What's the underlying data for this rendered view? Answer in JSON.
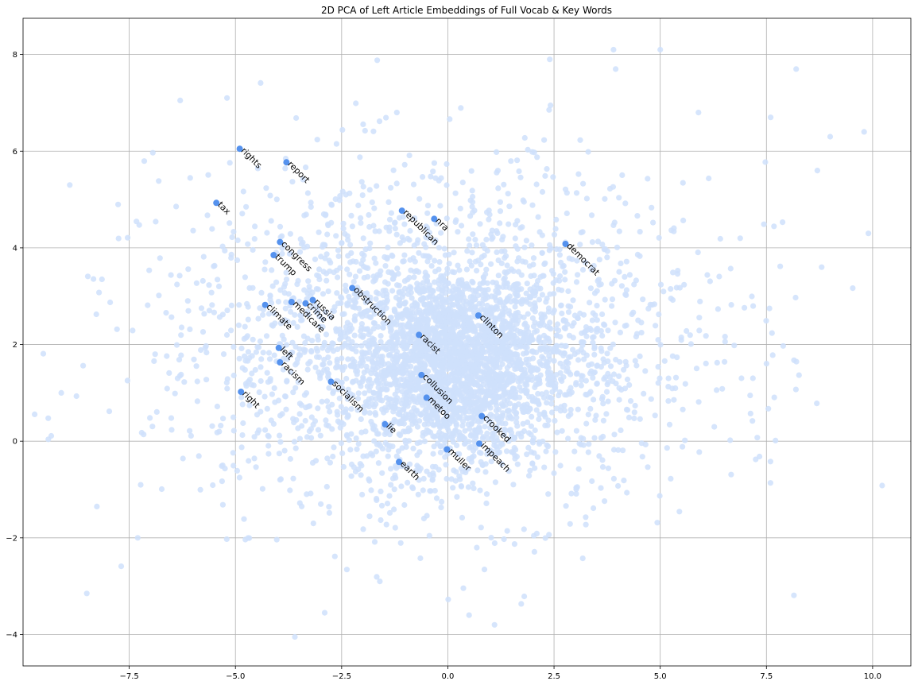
{
  "chart_data": {
    "type": "scatter",
    "title": "2D PCA of Left Article Embeddings of Full Vocab & Key Words",
    "xlim": [
      -10.0,
      10.9
    ],
    "ylim": [
      -4.65,
      8.75
    ],
    "grid": true,
    "x_ticks": [
      -7.5,
      -5.0,
      -2.5,
      0.0,
      2.5,
      5.0,
      7.5,
      10.0
    ],
    "x_tick_labels": [
      "−7.5",
      "−5.0",
      "−2.5",
      "0.0",
      "2.5",
      "5.0",
      "7.5",
      "10.0"
    ],
    "y_ticks": [
      -4,
      -2,
      0,
      2,
      4,
      6,
      8
    ],
    "y_tick_labels": [
      "−4",
      "−2",
      "0",
      "2",
      "4",
      "6",
      "8"
    ],
    "colors": {
      "vocab_points": "#cfe0fb",
      "key_points": "#5592ee",
      "grid": "#b0b0b0"
    },
    "vocab_cloud": {
      "count": 4200,
      "cluster_center": [
        1.0,
        1.6
      ],
      "cluster_spread": [
        1.3,
        1.0
      ],
      "sample_outliers": [
        [
          -8.9,
          5.3
        ],
        [
          -9.1,
          1.0
        ],
        [
          -8.5,
          -3.15
        ],
        [
          -7.3,
          -2.0
        ],
        [
          -6.3,
          7.05
        ],
        [
          -5.3,
          -0.5
        ],
        [
          -2.4,
          5.1
        ],
        [
          -3.6,
          -4.05
        ],
        [
          -2.9,
          -3.55
        ],
        [
          0.5,
          -3.6
        ],
        [
          1.1,
          -3.8
        ],
        [
          2.4,
          7.9
        ],
        [
          3.9,
          8.1
        ],
        [
          3.95,
          7.7
        ],
        [
          5.0,
          8.1
        ],
        [
          8.2,
          7.7
        ],
        [
          9.0,
          6.3
        ],
        [
          9.8,
          6.4
        ],
        [
          9.9,
          4.3
        ],
        [
          8.8,
          3.6
        ],
        [
          8.7,
          5.6
        ],
        [
          7.6,
          6.7
        ],
        [
          5.9,
          6.8
        ],
        [
          -1.6,
          -2.9
        ],
        [
          -1.2,
          6.8
        ]
      ]
    },
    "points": [
      {
        "label": "rights",
        "x": -4.9,
        "y": 6.05
      },
      {
        "label": "report",
        "x": -3.8,
        "y": 5.77
      },
      {
        "label": "tax",
        "x": -5.45,
        "y": 4.93
      },
      {
        "label": "republican",
        "x": -1.08,
        "y": 4.77
      },
      {
        "label": "nra",
        "x": -0.32,
        "y": 4.6
      },
      {
        "label": "democrat",
        "x": 2.77,
        "y": 4.08
      },
      {
        "label": "congress",
        "x": -3.95,
        "y": 4.12
      },
      {
        "label": "trump",
        "x": -4.1,
        "y": 3.85
      },
      {
        "label": "obstruction",
        "x": -2.25,
        "y": 3.17
      },
      {
        "label": "russia",
        "x": -3.18,
        "y": 2.92
      },
      {
        "label": "crime",
        "x": -3.35,
        "y": 2.85
      },
      {
        "label": "medicare",
        "x": -3.68,
        "y": 2.88
      },
      {
        "label": "climate",
        "x": -4.3,
        "y": 2.82
      },
      {
        "label": "clinton",
        "x": 0.72,
        "y": 2.6
      },
      {
        "label": "racist",
        "x": -0.68,
        "y": 2.2
      },
      {
        "label": "left",
        "x": -3.98,
        "y": 1.93
      },
      {
        "label": "racism",
        "x": -3.95,
        "y": 1.63
      },
      {
        "label": "collusion",
        "x": -0.62,
        "y": 1.37
      },
      {
        "label": "socialism",
        "x": -2.75,
        "y": 1.23
      },
      {
        "label": "right",
        "x": -4.87,
        "y": 1.02
      },
      {
        "label": "metoo",
        "x": -0.5,
        "y": 0.9
      },
      {
        "label": "crooked",
        "x": 0.8,
        "y": 0.52
      },
      {
        "label": "lie",
        "x": -1.48,
        "y": 0.35
      },
      {
        "label": "impeach",
        "x": 0.74,
        "y": -0.05
      },
      {
        "label": "muller",
        "x": -0.02,
        "y": -0.17
      },
      {
        "label": "earth",
        "x": -1.15,
        "y": -0.43
      }
    ]
  }
}
